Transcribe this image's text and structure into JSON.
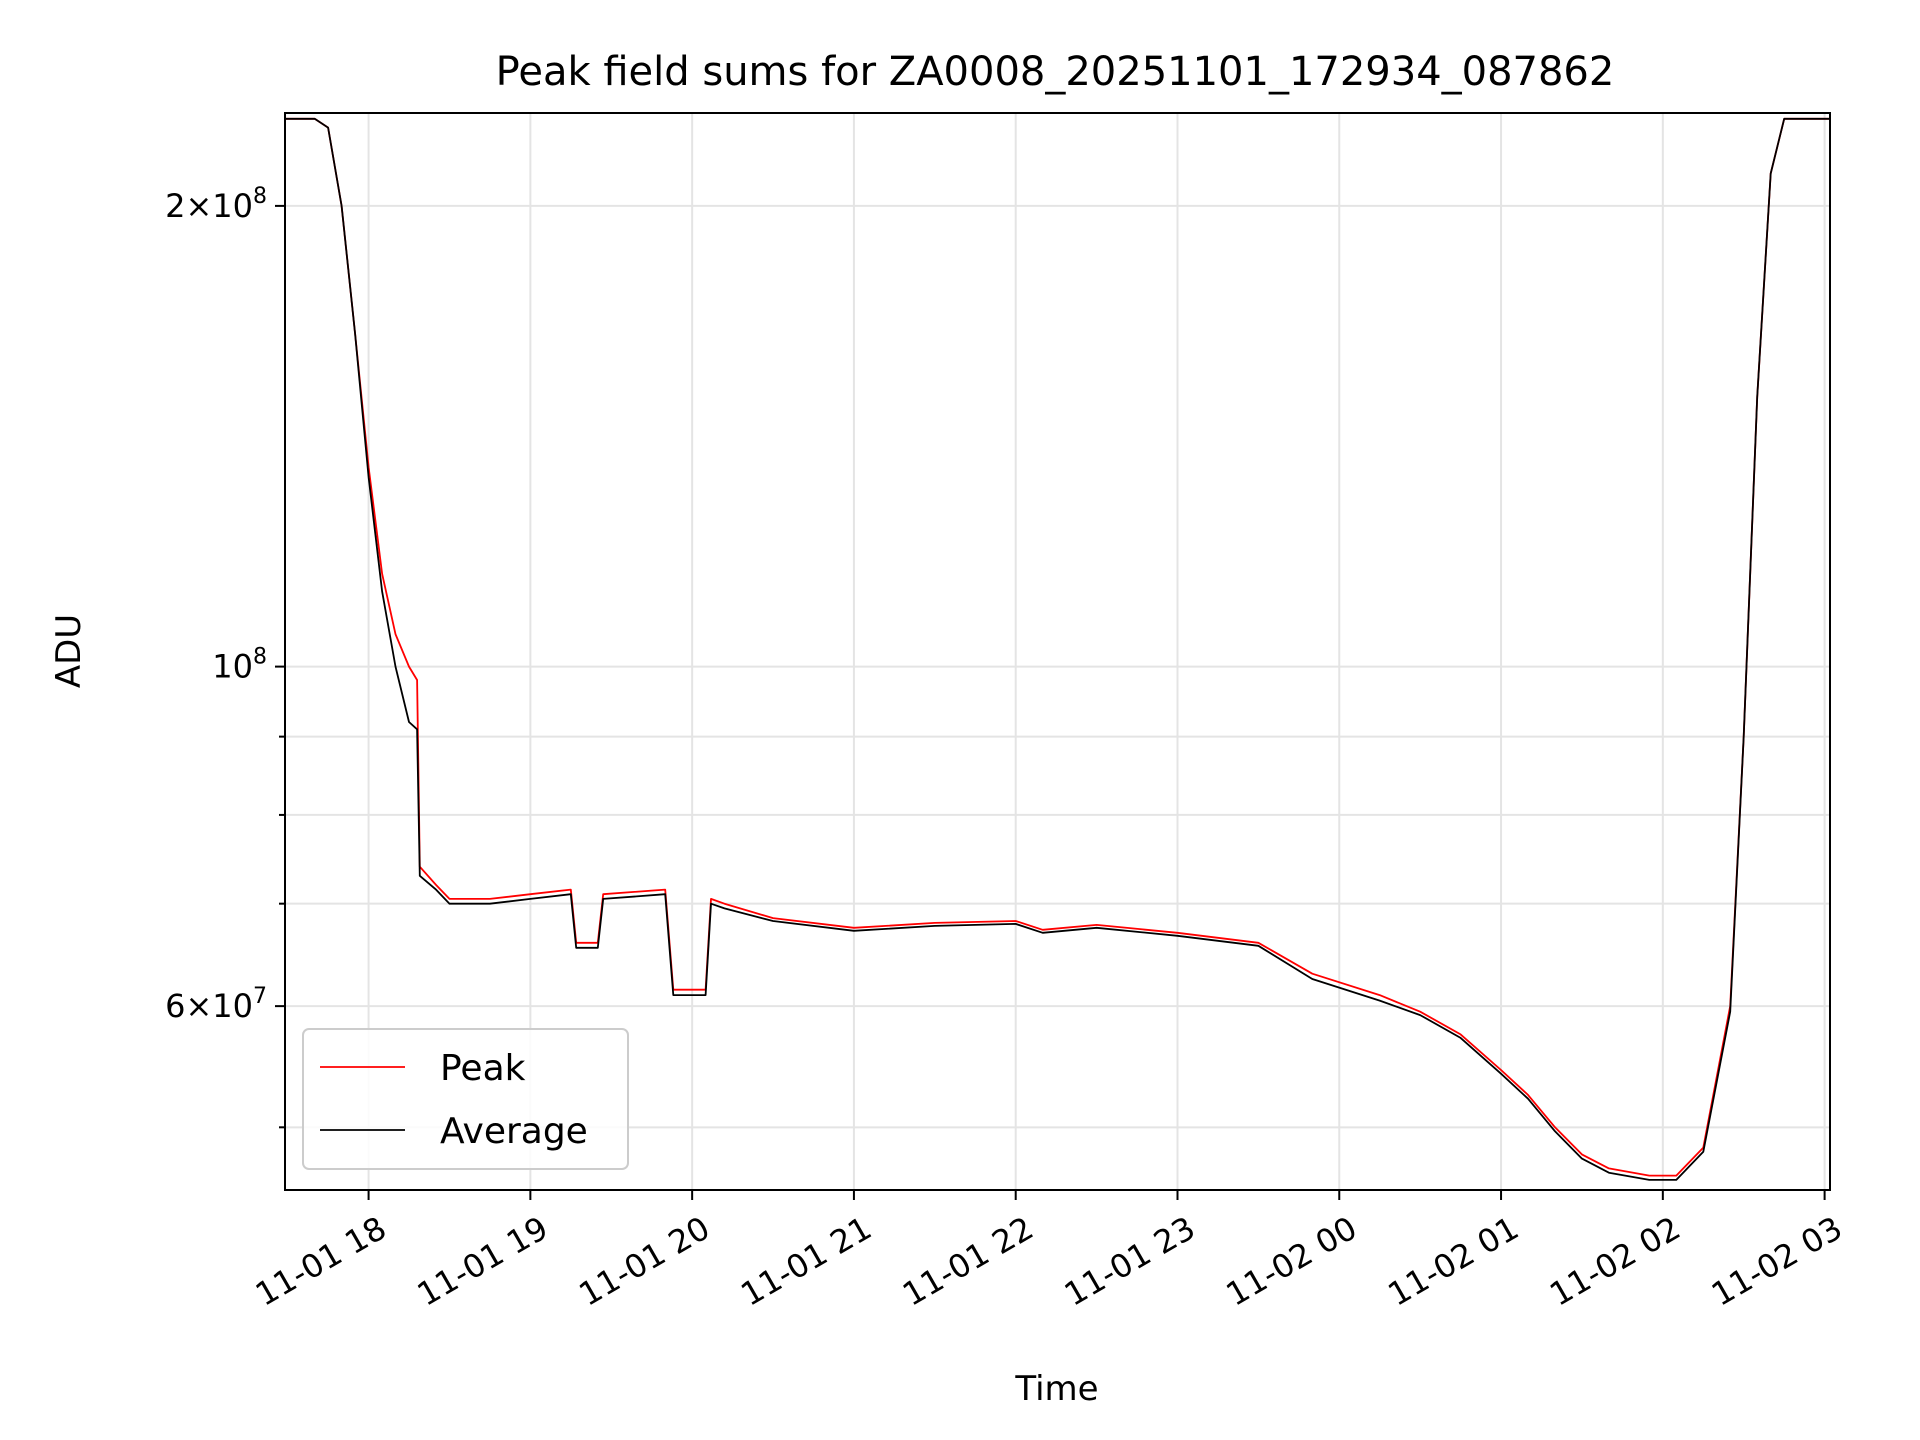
{
  "chart_data": {
    "type": "line",
    "title": "Peak field sums for ZA0008_20251101_172934_087862",
    "xlabel": "Time",
    "ylabel": "ADU",
    "yscale": "log",
    "grid": true,
    "legend_position": "lower-left",
    "x_ticks": [
      "11-01 18",
      "11-01 19",
      "11-01 20",
      "11-01 21",
      "11-01 22",
      "11-01 23",
      "11-02 00",
      "11-02 01",
      "11-02 02",
      "11-02 03"
    ],
    "y_major_ticks": [
      {
        "value": 60000000,
        "base": "6×10",
        "exp": "7"
      },
      {
        "value": 100000000,
        "base": "10",
        "exp": "8"
      },
      {
        "value": 200000000,
        "base": "2×10",
        "exp": "8"
      }
    ],
    "y_minor_ticks": [
      50000000,
      70000000,
      80000000,
      90000000
    ],
    "xlim": [
      "2025-11-01 17:29",
      "2025-11-02 03:02"
    ],
    "ylim": [
      45500000,
      230000000
    ],
    "series": [
      {
        "name": "Peak",
        "color": "#ff0000",
        "points": [
          [
            "17:29",
            228000000
          ],
          [
            "17:40",
            228000000
          ],
          [
            "17:45",
            225000000
          ],
          [
            "17:50",
            200000000
          ],
          [
            "17:55",
            165000000
          ],
          [
            "18:00",
            135000000
          ],
          [
            "18:05",
            115000000
          ],
          [
            "18:10",
            105000000
          ],
          [
            "18:15",
            100000000
          ],
          [
            "18:18",
            98000000
          ],
          [
            "18:19",
            74000000
          ],
          [
            "18:25",
            72000000
          ],
          [
            "18:30",
            70500000
          ],
          [
            "18:45",
            70500000
          ],
          [
            "19:00",
            71000000
          ],
          [
            "19:15",
            71500000
          ],
          [
            "19:17",
            66000000
          ],
          [
            "19:25",
            66000000
          ],
          [
            "19:27",
            71000000
          ],
          [
            "19:50",
            71500000
          ],
          [
            "19:53",
            61500000
          ],
          [
            "20:05",
            61500000
          ],
          [
            "20:07",
            70500000
          ],
          [
            "20:12",
            70000000
          ],
          [
            "20:30",
            68500000
          ],
          [
            "21:00",
            67500000
          ],
          [
            "21:30",
            68000000
          ],
          [
            "22:00",
            68200000
          ],
          [
            "22:10",
            67300000
          ],
          [
            "22:30",
            67800000
          ],
          [
            "23:00",
            67000000
          ],
          [
            "23:30",
            66000000
          ],
          [
            "23:50",
            63000000
          ],
          [
            "00:15",
            61000000
          ],
          [
            "00:30",
            59500000
          ],
          [
            "00:45",
            57500000
          ],
          [
            "01:00",
            54500000
          ],
          [
            "01:10",
            52500000
          ],
          [
            "01:20",
            50000000
          ],
          [
            "01:30",
            48000000
          ],
          [
            "01:40",
            47000000
          ],
          [
            "01:55",
            46500000
          ],
          [
            "02:05",
            46500000
          ],
          [
            "02:15",
            48500000
          ],
          [
            "02:25",
            60000000
          ],
          [
            "02:30",
            90000000
          ],
          [
            "02:35",
            150000000
          ],
          [
            "02:40",
            210000000
          ],
          [
            "02:45",
            228000000
          ],
          [
            "03:02",
            228000000
          ]
        ]
      },
      {
        "name": "Average",
        "color": "#000000",
        "points": [
          [
            "17:29",
            228000000
          ],
          [
            "17:40",
            228000000
          ],
          [
            "17:45",
            225000000
          ],
          [
            "17:50",
            200000000
          ],
          [
            "17:55",
            165000000
          ],
          [
            "18:00",
            133000000
          ],
          [
            "18:05",
            112000000
          ],
          [
            "18:10",
            100000000
          ],
          [
            "18:15",
            92000000
          ],
          [
            "18:18",
            91000000
          ],
          [
            "18:19",
            73000000
          ],
          [
            "18:25",
            71500000
          ],
          [
            "18:30",
            70000000
          ],
          [
            "18:45",
            70000000
          ],
          [
            "19:00",
            70500000
          ],
          [
            "19:15",
            71000000
          ],
          [
            "19:17",
            65500000
          ],
          [
            "19:25",
            65500000
          ],
          [
            "19:27",
            70500000
          ],
          [
            "19:50",
            71000000
          ],
          [
            "19:53",
            61000000
          ],
          [
            "20:05",
            61000000
          ],
          [
            "20:07",
            70000000
          ],
          [
            "20:12",
            69500000
          ],
          [
            "20:30",
            68200000
          ],
          [
            "21:00",
            67200000
          ],
          [
            "21:30",
            67700000
          ],
          [
            "22:00",
            67900000
          ],
          [
            "22:10",
            67000000
          ],
          [
            "22:30",
            67500000
          ],
          [
            "23:00",
            66700000
          ],
          [
            "23:30",
            65700000
          ],
          [
            "23:50",
            62500000
          ],
          [
            "00:15",
            60500000
          ],
          [
            "00:30",
            59200000
          ],
          [
            "00:45",
            57200000
          ],
          [
            "01:00",
            54200000
          ],
          [
            "01:10",
            52200000
          ],
          [
            "01:20",
            49700000
          ],
          [
            "01:30",
            47700000
          ],
          [
            "01:40",
            46700000
          ],
          [
            "01:55",
            46200000
          ],
          [
            "02:05",
            46200000
          ],
          [
            "02:15",
            48200000
          ],
          [
            "02:25",
            59500000
          ],
          [
            "02:30",
            90000000
          ],
          [
            "02:35",
            150000000
          ],
          [
            "02:40",
            210000000
          ],
          [
            "02:45",
            228000000
          ],
          [
            "03:02",
            228000000
          ]
        ]
      }
    ]
  }
}
